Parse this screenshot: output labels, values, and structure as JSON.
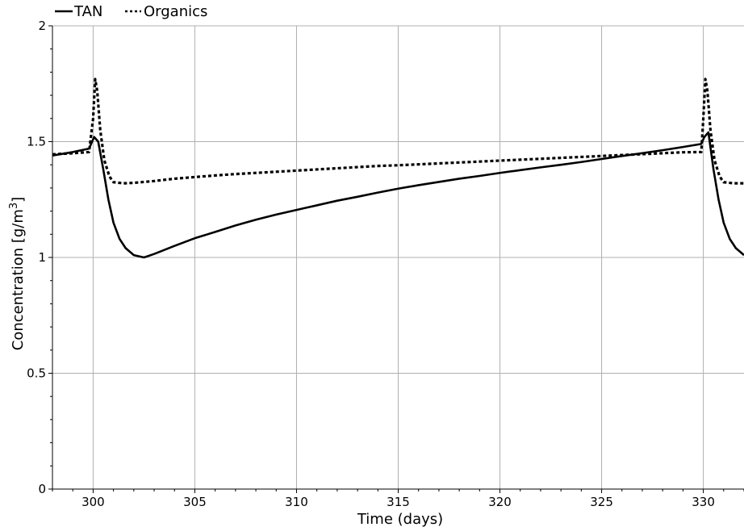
{
  "chart_data": {
    "type": "line",
    "xlabel": "Time (days)",
    "ylabel_main": "Concentration [g/m",
    "ylabel_sup": "3",
    "ylabel_end": "]",
    "xlim": [
      298,
      332
    ],
    "ylim": [
      0,
      2
    ],
    "xticks": [
      300,
      305,
      310,
      315,
      320,
      325,
      330
    ],
    "yticks": [
      0,
      0.5,
      1,
      1.5,
      2
    ],
    "ytick_labels": [
      "0",
      "0.5",
      "1",
      "1.5",
      "2"
    ],
    "grid": true,
    "legend_position": "top-left",
    "series": [
      {
        "name": "TAN",
        "style": "solid",
        "color": "#000000",
        "x": [
          298,
          299,
          299.8,
          300.05,
          300.25,
          300.5,
          300.75,
          301.0,
          301.3,
          301.6,
          302.0,
          302.5,
          303.0,
          304.0,
          305.0,
          306.0,
          307.0,
          308.0,
          309.0,
          310.0,
          311.0,
          312.0,
          313.0,
          314.0,
          315.0,
          316.0,
          317.0,
          318.0,
          319.0,
          320.0,
          321.0,
          322.0,
          323.0,
          324.0,
          325.0,
          326.0,
          327.0,
          328.0,
          329.0,
          329.9,
          330.05,
          330.25,
          330.5,
          330.75,
          331.0,
          331.3,
          331.6,
          332.0
        ],
        "y": [
          1.44,
          1.455,
          1.47,
          1.52,
          1.5,
          1.38,
          1.25,
          1.15,
          1.08,
          1.04,
          1.01,
          1.0,
          1.015,
          1.05,
          1.083,
          1.11,
          1.138,
          1.163,
          1.185,
          1.205,
          1.225,
          1.245,
          1.262,
          1.28,
          1.297,
          1.312,
          1.326,
          1.34,
          1.352,
          1.365,
          1.377,
          1.389,
          1.4,
          1.412,
          1.425,
          1.438,
          1.45,
          1.463,
          1.477,
          1.49,
          1.52,
          1.54,
          1.38,
          1.25,
          1.15,
          1.08,
          1.04,
          1.01
        ]
      },
      {
        "name": "Organics",
        "style": "dotted",
        "color": "#000000",
        "x": [
          298,
          299,
          299.8,
          300.0,
          300.1,
          300.2,
          300.35,
          300.55,
          300.8,
          301.0,
          301.5,
          302.0,
          303.0,
          304.0,
          305.0,
          306.0,
          307.0,
          308.0,
          309.0,
          310.0,
          311.0,
          312.0,
          313.0,
          314.0,
          315.0,
          316.0,
          317.0,
          318.0,
          319.0,
          320.0,
          321.0,
          322.0,
          323.0,
          324.0,
          325.0,
          326.0,
          327.0,
          328.0,
          329.0,
          329.9,
          330.0,
          330.1,
          330.2,
          330.35,
          330.55,
          330.8,
          331.0,
          331.5,
          332.0
        ],
        "y": [
          1.445,
          1.45,
          1.455,
          1.6,
          1.77,
          1.72,
          1.55,
          1.42,
          1.35,
          1.325,
          1.32,
          1.322,
          1.33,
          1.34,
          1.347,
          1.354,
          1.36,
          1.365,
          1.37,
          1.375,
          1.38,
          1.385,
          1.39,
          1.395,
          1.398,
          1.402,
          1.406,
          1.41,
          1.414,
          1.418,
          1.422,
          1.426,
          1.43,
          1.434,
          1.438,
          1.442,
          1.446,
          1.45,
          1.454,
          1.455,
          1.6,
          1.77,
          1.72,
          1.55,
          1.42,
          1.35,
          1.325,
          1.32,
          1.32
        ]
      }
    ]
  }
}
